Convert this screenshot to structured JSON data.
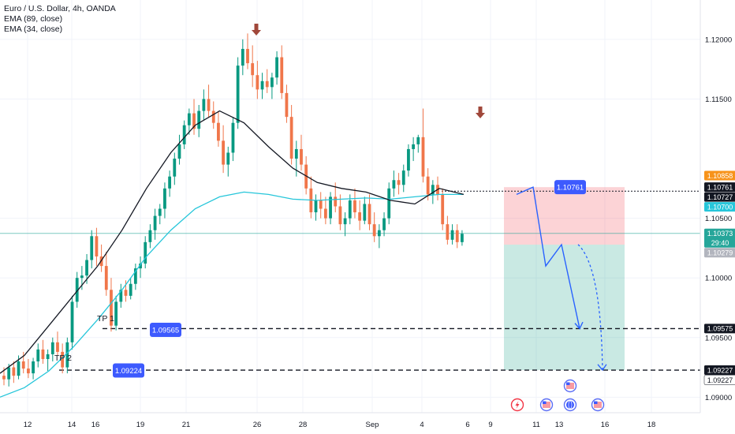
{
  "legend": {
    "title": "Euro / U.S. Dollar, 4h, OANDA",
    "ema89": "EMA (89, close)",
    "ema34": "EMA (34, close)"
  },
  "chart_data": {
    "type": "candlestick",
    "ylim": [
      1.0887,
      1.1233
    ],
    "y_ticks": [
      "1.12000",
      "1.11500",
      "1.10500",
      "1.10000",
      "1.09500",
      "1.09000"
    ],
    "x_ticks": [
      "12",
      "14",
      "16",
      "19",
      "21",
      "26",
      "28",
      "Sep",
      "4",
      "6",
      "9",
      "11",
      "13",
      "16",
      "18"
    ],
    "price_labels": [
      {
        "text": "1.10858",
        "price": 1.10858,
        "bg": "#f7931a",
        "fg": "#ffffff"
      },
      {
        "text": "1.10761",
        "price": 1.10761,
        "bg": "#131722",
        "fg": "#ffffff"
      },
      {
        "text": "1.10727",
        "price": 1.10727,
        "bg": "#131722",
        "fg": "#ffffff"
      },
      {
        "text": "1.10700",
        "price": 1.107,
        "bg": "#26c6da",
        "fg": "#ffffff"
      },
      {
        "text": "1.10373",
        "price": 1.10373,
        "bg": "#26a69a",
        "fg": "#ffffff",
        "sub": "29:40"
      },
      {
        "text": "1.10279",
        "price": 1.10279,
        "bg": "#b2b5be",
        "fg": "#ffffff"
      },
      {
        "text": "1.09575",
        "price": 1.09575,
        "bg": "#131722",
        "fg": "#ffffff"
      },
      {
        "text": "1.09227",
        "price": 1.09227,
        "bg": "#131722",
        "fg": "#ffffff"
      },
      {
        "text": "1.09227",
        "price": 1.0919,
        "bg": "#ffffff",
        "fg": "#131722"
      }
    ],
    "horizontal_lines": [
      {
        "price": 1.10727,
        "style": "dotted",
        "color": "#131722"
      },
      {
        "price": 1.09575,
        "style": "dashed",
        "color": "#131722"
      },
      {
        "price": 1.09227,
        "style": "dashed",
        "color": "#131722"
      }
    ],
    "callouts": [
      {
        "text": "1.10761",
        "price": 1.10761
      },
      {
        "text": "1.09565",
        "price": 1.09565
      },
      {
        "text": "1.09224",
        "price": 1.09224
      }
    ],
    "annotations": [
      {
        "text": "TP 1"
      },
      {
        "text": "TP 2"
      }
    ],
    "position": {
      "entry": 1.10279,
      "stop": 1.10761,
      "target": 1.09227
    },
    "candles": [
      [
        1.0918,
        1.0925,
        1.091,
        1.0915
      ],
      [
        1.0915,
        1.0928,
        1.0909,
        1.0925
      ],
      [
        1.0925,
        1.093,
        1.0912,
        1.0918
      ],
      [
        1.0918,
        1.0935,
        1.0915,
        1.093
      ],
      [
        1.093,
        1.0938,
        1.092,
        1.0924
      ],
      [
        1.0924,
        1.0932,
        1.0916,
        1.092
      ],
      [
        1.092,
        1.0933,
        1.0915,
        1.093
      ],
      [
        1.093,
        1.0945,
        1.0925,
        1.094
      ],
      [
        1.094,
        1.0948,
        1.0928,
        1.0932
      ],
      [
        1.0932,
        1.094,
        1.0922,
        1.0936
      ],
      [
        1.0936,
        1.095,
        1.093,
        1.0946
      ],
      [
        1.0946,
        1.0955,
        1.0935,
        1.0938
      ],
      [
        1.0938,
        1.0945,
        1.092,
        1.0925
      ],
      [
        1.0925,
        1.095,
        1.092,
        1.0946
      ],
      [
        1.0946,
        1.0985,
        1.094,
        1.098
      ],
      [
        1.098,
        1.1005,
        1.0975,
        1.1
      ],
      [
        1.1,
        1.101,
        1.099,
        1.1002
      ],
      [
        1.1002,
        1.102,
        1.0995,
        1.1015
      ],
      [
        1.1015,
        1.104,
        1.1008,
        1.1035
      ],
      [
        1.1035,
        1.1042,
        1.101,
        1.1018
      ],
      [
        1.1018,
        1.1028,
        1.1005,
        1.101
      ],
      [
        1.101,
        1.1022,
        1.0985,
        1.099
      ],
      [
        1.099,
        1.1,
        1.0955,
        1.096
      ],
      [
        1.096,
        1.0985,
        1.0956,
        1.098
      ],
      [
        1.098,
        1.0995,
        1.0975,
        1.099
      ],
      [
        1.099,
        1.0998,
        1.098,
        1.0985
      ],
      [
        1.0985,
        1.1,
        1.0982,
        1.0995
      ],
      [
        1.0995,
        1.1012,
        1.099,
        1.1008
      ],
      [
        1.1008,
        1.1018,
        1.1,
        1.1012
      ],
      [
        1.1012,
        1.1035,
        1.1008,
        1.103
      ],
      [
        1.103,
        1.1045,
        1.1025,
        1.104
      ],
      [
        1.104,
        1.1058,
        1.1032,
        1.1052
      ],
      [
        1.1052,
        1.1062,
        1.1045,
        1.1058
      ],
      [
        1.1058,
        1.108,
        1.105,
        1.1075
      ],
      [
        1.1075,
        1.109,
        1.1068,
        1.1085
      ],
      [
        1.1085,
        1.1105,
        1.1078,
        1.11
      ],
      [
        1.11,
        1.112,
        1.1095,
        1.1112
      ],
      [
        1.1112,
        1.1132,
        1.1108,
        1.1128
      ],
      [
        1.1128,
        1.1142,
        1.112,
        1.1138
      ],
      [
        1.1138,
        1.115,
        1.112,
        1.1125
      ],
      [
        1.1125,
        1.1145,
        1.1118,
        1.114
      ],
      [
        1.114,
        1.1158,
        1.1132,
        1.115
      ],
      [
        1.115,
        1.1162,
        1.1135,
        1.114
      ],
      [
        1.114,
        1.1148,
        1.1125,
        1.113
      ],
      [
        1.113,
        1.114,
        1.111,
        1.1115
      ],
      [
        1.1115,
        1.1128,
        1.1088,
        1.1095
      ],
      [
        1.1095,
        1.111,
        1.1085,
        1.1105
      ],
      [
        1.1105,
        1.1135,
        1.1098,
        1.113
      ],
      [
        1.113,
        1.1185,
        1.1125,
        1.1178
      ],
      [
        1.1178,
        1.12,
        1.117,
        1.1192
      ],
      [
        1.1192,
        1.1205,
        1.1175,
        1.118
      ],
      [
        1.118,
        1.1195,
        1.116,
        1.117
      ],
      [
        1.117,
        1.1182,
        1.115,
        1.1158
      ],
      [
        1.1158,
        1.1172,
        1.115,
        1.1165
      ],
      [
        1.1165,
        1.1175,
        1.1155,
        1.116
      ],
      [
        1.116,
        1.1172,
        1.115,
        1.1168
      ],
      [
        1.1168,
        1.119,
        1.1162,
        1.1185
      ],
      [
        1.1185,
        1.1195,
        1.115,
        1.1155
      ],
      [
        1.1155,
        1.1162,
        1.113,
        1.1135
      ],
      [
        1.1135,
        1.1145,
        1.1095,
        1.11
      ],
      [
        1.11,
        1.1115,
        1.1085,
        1.1108
      ],
      [
        1.1108,
        1.112,
        1.109,
        1.1095
      ],
      [
        1.1095,
        1.1102,
        1.107,
        1.1075
      ],
      [
        1.1075,
        1.1085,
        1.105,
        1.1055
      ],
      [
        1.1055,
        1.107,
        1.1048,
        1.1065
      ],
      [
        1.1065,
        1.1072,
        1.105,
        1.1058
      ],
      [
        1.1058,
        1.1068,
        1.1045,
        1.105
      ],
      [
        1.105,
        1.1072,
        1.1045,
        1.1068
      ],
      [
        1.1068,
        1.108,
        1.1055,
        1.106
      ],
      [
        1.106,
        1.107,
        1.104,
        1.1045
      ],
      [
        1.1045,
        1.1055,
        1.1035,
        1.105
      ],
      [
        1.105,
        1.107,
        1.1045,
        1.1065
      ],
      [
        1.1065,
        1.1075,
        1.105,
        1.1055
      ],
      [
        1.1055,
        1.1065,
        1.104,
        1.1048
      ],
      [
        1.1048,
        1.1068,
        1.1045,
        1.1062
      ],
      [
        1.1062,
        1.107,
        1.104,
        1.1045
      ],
      [
        1.1045,
        1.1055,
        1.103,
        1.1035
      ],
      [
        1.1035,
        1.1045,
        1.1025,
        1.104
      ],
      [
        1.104,
        1.1055,
        1.1035,
        1.105
      ],
      [
        1.105,
        1.108,
        1.1045,
        1.1075
      ],
      [
        1.1075,
        1.109,
        1.1068,
        1.1082
      ],
      [
        1.1082,
        1.1088,
        1.107,
        1.1078
      ],
      [
        1.1078,
        1.1095,
        1.1072,
        1.109
      ],
      [
        1.109,
        1.1112,
        1.1085,
        1.1108
      ],
      [
        1.1108,
        1.1118,
        1.1098,
        1.1112
      ],
      [
        1.1112,
        1.112,
        1.1105,
        1.1118
      ],
      [
        1.1118,
        1.1142,
        1.108,
        1.1085
      ],
      [
        1.1085,
        1.1092,
        1.1065,
        1.107
      ],
      [
        1.107,
        1.1082,
        1.1062,
        1.1078
      ],
      [
        1.1078,
        1.1085,
        1.1065,
        1.107
      ],
      [
        1.107,
        1.1075,
        1.104,
        1.1045
      ],
      [
        1.1045,
        1.1052,
        1.1028,
        1.1032
      ],
      [
        1.1032,
        1.1045,
        1.1028,
        1.104
      ],
      [
        1.104,
        1.1045,
        1.1025,
        1.103
      ],
      [
        1.103,
        1.104,
        1.1027,
        1.1037
      ]
    ],
    "ema34": [
      1.092,
      1.0935,
      1.096,
      1.0985,
      1.101,
      1.104,
      1.1075,
      1.1105,
      1.1128,
      1.114,
      1.113,
      1.111,
      1.1092,
      1.108,
      1.1075,
      1.1072,
      1.1065,
      1.1062,
      1.1075,
      1.107
    ],
    "ema89": [
      1.09,
      1.0908,
      1.0922,
      1.0942,
      1.0965,
      1.099,
      1.1018,
      1.104,
      1.1058,
      1.1068,
      1.1072,
      1.107,
      1.1066,
      1.1065,
      1.1066,
      1.1067,
      1.1066,
      1.1068,
      1.107,
      1.107
    ]
  }
}
